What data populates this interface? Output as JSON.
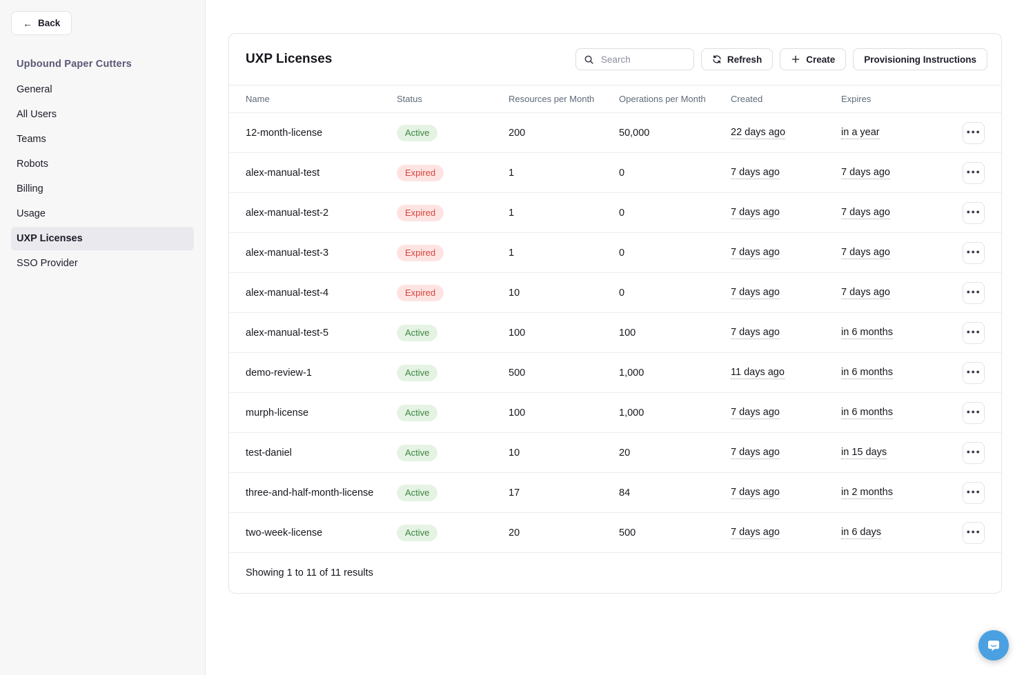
{
  "sidebar": {
    "back_label": "Back",
    "org_name": "Upbound Paper Cutters",
    "items": [
      {
        "label": "General",
        "active": false
      },
      {
        "label": "All Users",
        "active": false
      },
      {
        "label": "Teams",
        "active": false
      },
      {
        "label": "Robots",
        "active": false
      },
      {
        "label": "Billing",
        "active": false
      },
      {
        "label": "Usage",
        "active": false
      },
      {
        "label": "UXP Licenses",
        "active": true
      },
      {
        "label": "SSO Provider",
        "active": false
      }
    ]
  },
  "main": {
    "title": "UXP Licenses",
    "search_placeholder": "Search",
    "buttons": {
      "refresh": "Refresh",
      "create": "Create",
      "provisioning": "Provisioning Instructions"
    },
    "table": {
      "columns": [
        "Name",
        "Status",
        "Resources per Month",
        "Operations per Month",
        "Created",
        "Expires"
      ],
      "rows": [
        {
          "name": "12-month-license",
          "status": "Active",
          "resources": "200",
          "operations": "50,000",
          "created": "22 days ago",
          "expires": "in a year"
        },
        {
          "name": "alex-manual-test",
          "status": "Expired",
          "resources": "1",
          "operations": "0",
          "created": "7 days ago",
          "expires": "7 days ago"
        },
        {
          "name": "alex-manual-test-2",
          "status": "Expired",
          "resources": "1",
          "operations": "0",
          "created": "7 days ago",
          "expires": "7 days ago"
        },
        {
          "name": "alex-manual-test-3",
          "status": "Expired",
          "resources": "1",
          "operations": "0",
          "created": "7 days ago",
          "expires": "7 days ago"
        },
        {
          "name": "alex-manual-test-4",
          "status": "Expired",
          "resources": "10",
          "operations": "0",
          "created": "7 days ago",
          "expires": "7 days ago"
        },
        {
          "name": "alex-manual-test-5",
          "status": "Active",
          "resources": "100",
          "operations": "100",
          "created": "7 days ago",
          "expires": "in 6 months"
        },
        {
          "name": "demo-review-1",
          "status": "Active",
          "resources": "500",
          "operations": "1,000",
          "created": "11 days ago",
          "expires": "in 6 months"
        },
        {
          "name": "murph-license",
          "status": "Active",
          "resources": "100",
          "operations": "1,000",
          "created": "7 days ago",
          "expires": "in 6 months"
        },
        {
          "name": "test-daniel",
          "status": "Active",
          "resources": "10",
          "operations": "20",
          "created": "7 days ago",
          "expires": "in 15 days"
        },
        {
          "name": "three-and-half-month-license",
          "status": "Active",
          "resources": "17",
          "operations": "84",
          "created": "7 days ago",
          "expires": "in 2 months"
        },
        {
          "name": "two-week-license",
          "status": "Active",
          "resources": "20",
          "operations": "500",
          "created": "7 days ago",
          "expires": "in 6 days"
        }
      ],
      "footer": "Showing 1 to 11 of 11 results"
    }
  },
  "colors": {
    "accent_blue": "#4aa0e0",
    "status_active_bg": "#e4f3e4",
    "status_active_text": "#3c8440",
    "status_expired_bg": "#fde4e2",
    "status_expired_text": "#d6453e",
    "sidebar_bg": "#f7f7f8",
    "org_heading_text": "#585874"
  },
  "icons": {
    "back": "back-arrow-icon",
    "search": "search-icon",
    "refresh": "refresh-icon",
    "plus": "plus-icon",
    "ellipsis": "ellipsis-icon",
    "chat": "chat-bubble-icon"
  }
}
